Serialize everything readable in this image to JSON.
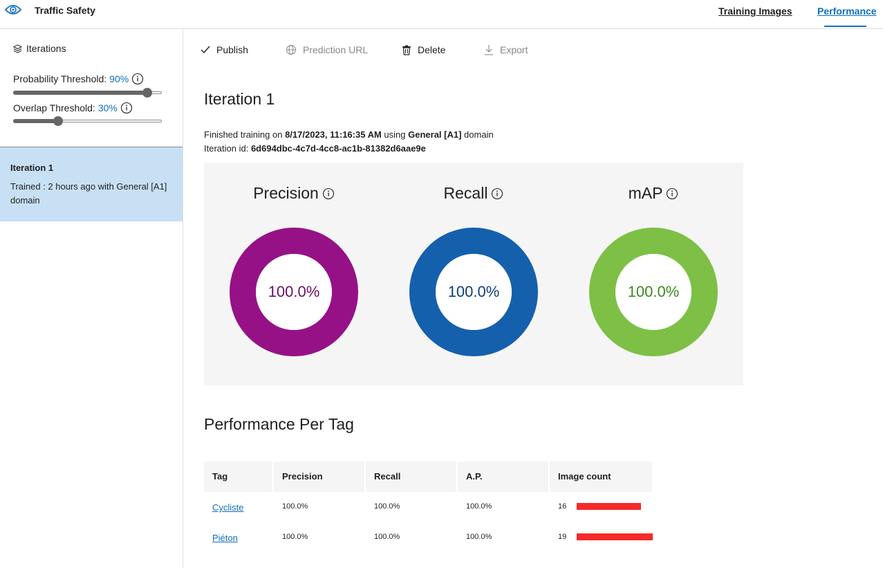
{
  "header": {
    "project_name": "Traffic Safety",
    "nav": [
      {
        "label": "Training Images",
        "active": false
      },
      {
        "label": "Performance",
        "active": true
      }
    ],
    "accent_color": "#106ebe"
  },
  "sidebar": {
    "iterations_heading": "Iterations",
    "probability_threshold": {
      "label": "Probability Threshold:",
      "value_text": "90%",
      "value": 0.9
    },
    "overlap_threshold": {
      "label": "Overlap Threshold:",
      "value_text": "30%",
      "value": 0.3
    },
    "iteration_card": {
      "title": "Iteration 1",
      "description": "Trained : 2 hours ago with General [A1] domain"
    }
  },
  "toolbar": {
    "publish": "Publish",
    "prediction_url": "Prediction URL",
    "delete": "Delete",
    "export": "Export"
  },
  "main": {
    "iteration_title": "Iteration 1",
    "training_prefix": "Finished training on ",
    "training_date": "8/17/2023, 11:16:35 AM",
    "training_mid": " using ",
    "training_domain": "General [A1]",
    "training_suffix": " domain",
    "iteration_id_label": "Iteration id: ",
    "iteration_id": "6d694dbc-4c7d-4cc8-ac1b-81382d6aae9e",
    "metrics": [
      {
        "name": "Precision",
        "value_text": "100.0%",
        "value": 1.0,
        "color": "#961186",
        "text_color": "#6e0f63"
      },
      {
        "name": "Recall",
        "value_text": "100.0%",
        "value": 1.0,
        "color": "#1560ad",
        "text_color": "#0f3d7a"
      },
      {
        "name": "mAP",
        "value_text": "100.0%",
        "value": 1.0,
        "color": "#7dc045",
        "text_color": "#3c8a1f"
      }
    ],
    "per_tag_title": "Performance Per Tag"
  },
  "table": {
    "columns": [
      "Tag",
      "Precision",
      "Recall",
      "A.P.",
      "Image count"
    ],
    "rows": [
      {
        "tag": "Cycliste",
        "precision": "100.0%",
        "recall": "100.0%",
        "ap": "100.0%",
        "image_count": "16",
        "count_value": 16
      },
      {
        "tag": "Piéton",
        "precision": "100.0%",
        "recall": "100.0%",
        "ap": "100.0%",
        "image_count": "19",
        "count_value": 19
      }
    ],
    "bar_color": "#f52a2a"
  }
}
